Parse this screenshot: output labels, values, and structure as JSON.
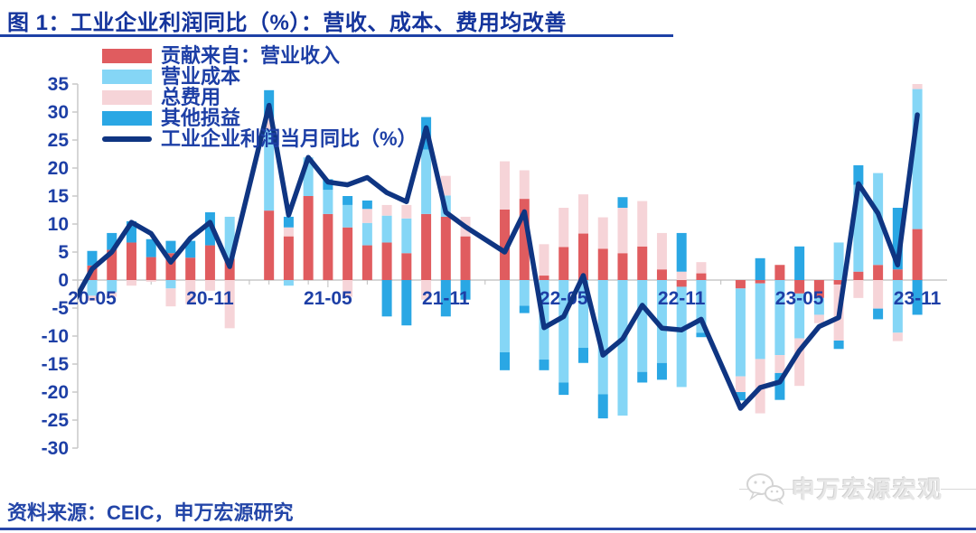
{
  "title": "图 1：工业企业利润同比（%）：营收、成本、费用均改善",
  "source": "资料来源：CEIC，申万宏源研究",
  "watermark": "申万宏源宏观",
  "colors": {
    "revenue": "#E05C5F",
    "cost": "#85D6F6",
    "fee": "#F6D4D8",
    "other": "#2AA7E4",
    "line": "#0F3582",
    "axis_text": "#1D3FA6",
    "grid": "#C8C8C8",
    "title_blue": "#14349C"
  },
  "legend": {
    "items": [
      {
        "label": "贡献来自：营业收入",
        "swatch": "revenue"
      },
      {
        "label": "营业成本",
        "swatch": "cost"
      },
      {
        "label": "总费用",
        "swatch": "fee"
      },
      {
        "label": "其他损益",
        "swatch": "other"
      },
      {
        "label": "工业企业利润当月同比（%）",
        "swatch": "line"
      }
    ]
  },
  "chart_data": {
    "type": "bar",
    "subtype": "stacked-bar-with-line-overlay",
    "title": "工业企业利润同比（%）",
    "xlabel": "",
    "ylabel": "",
    "ylim": [
      -30,
      35
    ],
    "y_ticks": [
      35,
      30,
      25,
      20,
      15,
      10,
      5,
      0,
      -5,
      -10,
      -15,
      -20,
      -25,
      -30
    ],
    "grid": "zero-line-only",
    "legend_position": "top-left-inside",
    "categories": [
      "2020-04",
      "2020-05",
      "2020-06",
      "2020-07",
      "2020-08",
      "2020-09",
      "2020-10",
      "2020-11",
      "2020-12",
      "2021-01",
      "2021-02",
      "2021-03",
      "2021-04",
      "2021-05",
      "2021-06",
      "2021-07",
      "2021-08",
      "2021-09",
      "2021-10",
      "2021-11",
      "2021-12",
      "2022-01",
      "2022-02",
      "2022-03",
      "2022-04",
      "2022-05",
      "2022-06",
      "2022-07",
      "2022-08",
      "2022-09",
      "2022-10",
      "2022-11",
      "2022-12",
      "2023-01",
      "2023-02",
      "2023-03",
      "2023-04",
      "2023-05",
      "2023-06",
      "2023-07",
      "2023-08",
      "2023-09",
      "2023-10",
      "2023-11"
    ],
    "x_tick_labels": [
      {
        "label": "20-05",
        "index": 1
      },
      {
        "label": "20-11",
        "index": 7
      },
      {
        "label": "21-05",
        "index": 13
      },
      {
        "label": "21-11",
        "index": 19
      },
      {
        "label": "22-05",
        "index": 25
      },
      {
        "label": "22-11",
        "index": 31
      },
      {
        "label": "23-05",
        "index": 37
      },
      {
        "label": "23-11",
        "index": 43
      }
    ],
    "series": [
      {
        "name": "贡献来自：营业收入",
        "color_key": "revenue",
        "values": [
          null,
          2.6,
          5.4,
          6.7,
          4.1,
          4.8,
          4.0,
          6.2,
          3.8,
          null,
          12.4,
          7.8,
          15.0,
          11.8,
          9.4,
          6.2,
          6.7,
          4.8,
          11.8,
          11.3,
          7.8,
          null,
          12.6,
          14.5,
          0.8,
          5.9,
          8.3,
          5.6,
          4.8,
          6.0,
          1.9,
          -1.2,
          1.2,
          null,
          -1.5,
          -0.6,
          2.7,
          -2.4,
          -3.2,
          -0.8,
          1.5,
          2.7,
          1.9,
          9.1
        ]
      },
      {
        "name": "营业成本",
        "color_key": "cost",
        "values": [
          null,
          -2.8,
          -2.2,
          0,
          0,
          -1.5,
          0,
          0,
          7.5,
          null,
          14.5,
          -1.0,
          6.9,
          4.3,
          4.0,
          4.0,
          4.8,
          6.2,
          11.5,
          3.8,
          0,
          null,
          -12.9,
          -4.6,
          -14.2,
          -18.3,
          -12.1,
          -20.4,
          -24.2,
          -16.4,
          -14.8,
          -17.9,
          -9.4,
          null,
          -15.7,
          -13.5,
          -13.4,
          -8.0,
          -3.0,
          6.7,
          15.5,
          16.4,
          -9.4,
          25.0
        ]
      },
      {
        "name": "总费用",
        "color_key": "fee",
        "values": [
          null,
          -0.9,
          -0.8,
          -1.0,
          -0.3,
          -3.2,
          -4.3,
          -1.9,
          -8.6,
          null,
          2.0,
          1.6,
          0,
          0,
          -3.0,
          2.5,
          1.9,
          2.4,
          -3.5,
          3.5,
          3.5,
          null,
          8.6,
          5.1,
          5.6,
          7.0,
          7.0,
          5.6,
          8.1,
          8.1,
          6.5,
          1.5,
          2.0,
          null,
          -2.8,
          -9.7,
          -3.2,
          -8.5,
          -1.5,
          -10.0,
          -3.2,
          -5.1,
          -1.5,
          0.9
        ]
      },
      {
        "name": "其他损益",
        "color_key": "other",
        "values": [
          null,
          2.6,
          3.0,
          3.8,
          3.2,
          2.2,
          3.0,
          5.9,
          0,
          null,
          5.0,
          1.9,
          0,
          1.9,
          1.6,
          1.5,
          -6.5,
          -8.1,
          5.8,
          -6.5,
          -3.5,
          null,
          -3.2,
          -1.3,
          -1.9,
          -2.2,
          -2.7,
          -4.3,
          1.9,
          -1.9,
          -3.0,
          6.9,
          -0.8,
          null,
          -1.5,
          3.9,
          -4.8,
          6.0,
          0,
          -1.5,
          3.5,
          -1.9,
          11.0,
          -6.2
        ]
      }
    ],
    "line_series": {
      "name": "工业企业利润当月同比（%）",
      "values": [
        -4.3,
        2.0,
        5.0,
        10.3,
        8.3,
        3.2,
        7.5,
        10.3,
        2.4,
        null,
        31.2,
        11.6,
        21.9,
        17.5,
        17.0,
        18.3,
        15.6,
        14.0,
        27.2,
        12.1,
        9.5,
        null,
        5.0,
        12.2,
        -8.5,
        -6.5,
        0.8,
        -13.4,
        -10.5,
        -4.5,
        -8.6,
        -8.9,
        -7.0,
        null,
        -22.9,
        -19.2,
        -18.2,
        -12.6,
        -8.3,
        -6.7,
        17.2,
        11.9,
        2.7,
        29.5
      ]
    }
  }
}
